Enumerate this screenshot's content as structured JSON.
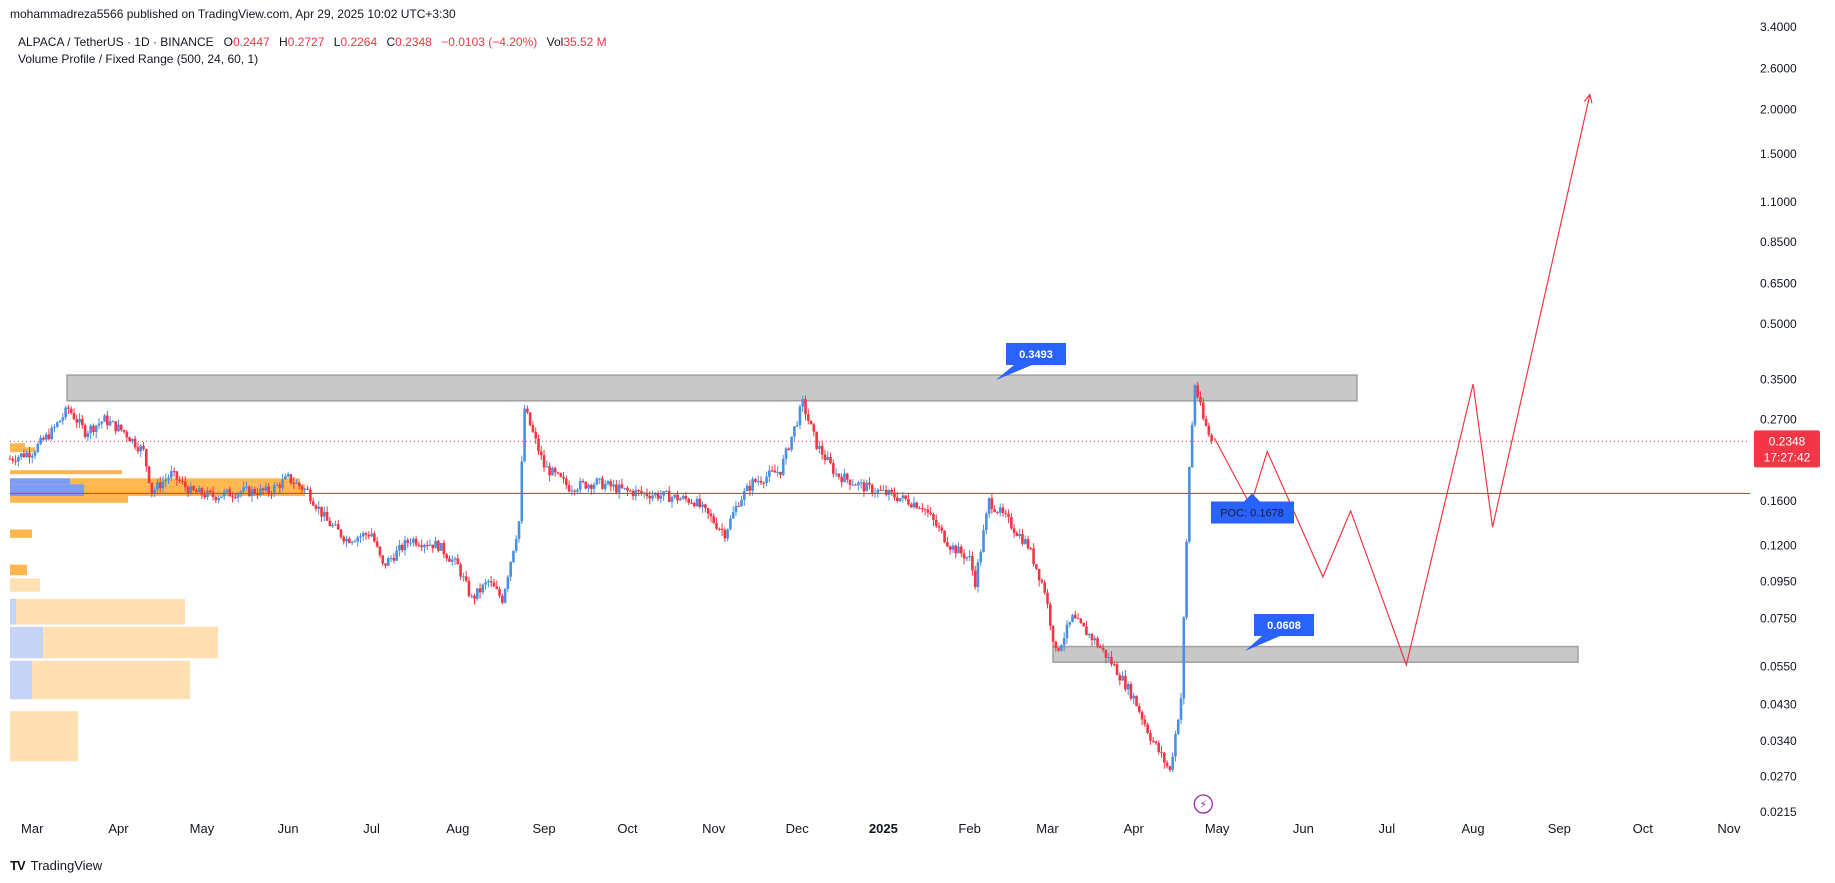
{
  "header": {
    "published_line": "mohammadreza5566 published on TradingView.com, Apr 29, 2025 10:02 UTC+3:30"
  },
  "symbol": {
    "title": "ALPACA / TetherUS · 1D · BINANCE",
    "open_label": "O",
    "open": "0.2447",
    "high_label": "H",
    "high": "0.2727",
    "low_label": "L",
    "low": "0.2264",
    "close_label": "C",
    "close": "0.2348",
    "change": "−0.0103 (−4.20%)",
    "vol_label": "Vol",
    "vol": "35.52 M"
  },
  "indicator": {
    "label": "Volume Profile / Fixed Range (500, 24, 60, 1)"
  },
  "footer": {
    "brand": "TradingView"
  },
  "colors": {
    "up": "#2962ff",
    "up_wick": "#4a90e2",
    "down": "#f23645",
    "zone_fill": "#c8c8c8",
    "zone_stroke": "#a0a0a0",
    "label_bg": "#2962ff",
    "vp_orange": "#ffb74d",
    "vp_blue": "#7b9cf5",
    "vp_orange_light": "#ffe0b2",
    "vp_blue_light": "#c5d3f7",
    "price_badge": "#f23645",
    "flash_icon": "#9c27b0"
  },
  "chart_data": {
    "type": "candlestick",
    "scale": "log",
    "ylim": [
      0.0215,
      3.4
    ],
    "y_ticks": [
      "3.4000",
      "2.6000",
      "2.0000",
      "1.5000",
      "1.1000",
      "0.8500",
      "0.6500",
      "0.5000",
      "0.3500",
      "0.2700",
      "0.1600",
      "0.1200",
      "0.0950",
      "0.0750",
      "0.0550",
      "0.0430",
      "0.0340",
      "0.0270",
      "0.0215"
    ],
    "x_ticks": [
      "Mar",
      "Apr",
      "May",
      "Jun",
      "Jul",
      "Aug",
      "Sep",
      "Oct",
      "Nov",
      "Dec",
      "2025",
      "Feb",
      "Mar",
      "Apr",
      "May",
      "Jun",
      "Jul",
      "Aug",
      "Sep",
      "Oct",
      "Nov"
    ],
    "x_ticks_bold": "2025",
    "price_path": [
      [
        "2024-02-22",
        0.21
      ],
      [
        "2024-03-01",
        0.22
      ],
      [
        "2024-03-08",
        0.25
      ],
      [
        "2024-03-14",
        0.29
      ],
      [
        "2024-03-20",
        0.25
      ],
      [
        "2024-03-27",
        0.27
      ],
      [
        "2024-04-03",
        0.25
      ],
      [
        "2024-04-10",
        0.22
      ],
      [
        "2024-04-13",
        0.17
      ],
      [
        "2024-04-20",
        0.19
      ],
      [
        "2024-04-27",
        0.17
      ],
      [
        "2024-05-05",
        0.165
      ],
      [
        "2024-05-15",
        0.17
      ],
      [
        "2024-05-25",
        0.17
      ],
      [
        "2024-06-01",
        0.185
      ],
      [
        "2024-06-08",
        0.17
      ],
      [
        "2024-06-15",
        0.14
      ],
      [
        "2024-06-22",
        0.125
      ],
      [
        "2024-07-01",
        0.13
      ],
      [
        "2024-07-05",
        0.105
      ],
      [
        "2024-07-15",
        0.125
      ],
      [
        "2024-07-25",
        0.12
      ],
      [
        "2024-08-01",
        0.105
      ],
      [
        "2024-08-06",
        0.085
      ],
      [
        "2024-08-12",
        0.095
      ],
      [
        "2024-08-17",
        0.085
      ],
      [
        "2024-08-23",
        0.14
      ],
      [
        "2024-08-25",
        0.29
      ],
      [
        "2024-09-01",
        0.2
      ],
      [
        "2024-09-10",
        0.175
      ],
      [
        "2024-09-20",
        0.18
      ],
      [
        "2024-10-01",
        0.17
      ],
      [
        "2024-10-15",
        0.165
      ],
      [
        "2024-10-25",
        0.16
      ],
      [
        "2024-11-05",
        0.13
      ],
      [
        "2024-11-10",
        0.16
      ],
      [
        "2024-11-15",
        0.18
      ],
      [
        "2024-11-25",
        0.195
      ],
      [
        "2024-12-03",
        0.3
      ],
      [
        "2024-12-08",
        0.23
      ],
      [
        "2024-12-15",
        0.19
      ],
      [
        "2024-12-25",
        0.175
      ],
      [
        "2025-01-05",
        0.165
      ],
      [
        "2025-01-15",
        0.155
      ],
      [
        "2025-01-25",
        0.12
      ],
      [
        "2025-02-01",
        0.11
      ],
      [
        "2025-02-03",
        0.095
      ],
      [
        "2025-02-08",
        0.16
      ],
      [
        "2025-02-15",
        0.14
      ],
      [
        "2025-02-22",
        0.12
      ],
      [
        "2025-02-28",
        0.09
      ],
      [
        "2025-03-04",
        0.06
      ],
      [
        "2025-03-10",
        0.075
      ],
      [
        "2025-03-18",
        0.065
      ],
      [
        "2025-03-25",
        0.055
      ],
      [
        "2025-04-01",
        0.045
      ],
      [
        "2025-04-07",
        0.035
      ],
      [
        "2025-04-14",
        0.028
      ],
      [
        "2025-04-18",
        0.045
      ],
      [
        "2025-04-21",
        0.2
      ],
      [
        "2025-04-23",
        0.34
      ],
      [
        "2025-04-26",
        0.27
      ],
      [
        "2025-04-29",
        0.2348
      ]
    ],
    "resistance_zone": [
      0.305,
      0.36
    ],
    "support_zone": [
      0.0565,
      0.0625
    ],
    "resistance_label": "0.3493",
    "support_label": "0.0608",
    "poc_value": 0.1678,
    "poc_label": "POC: 0.1678",
    "last_price": "0.2348",
    "countdown": "17:27:42",
    "projection": [
      [
        "2025-04-30",
        0.24
      ],
      [
        "2025-05-13",
        0.155
      ],
      [
        "2025-05-19",
        0.22
      ],
      [
        "2025-06-08",
        0.098
      ],
      [
        "2025-06-18",
        0.15
      ],
      [
        "2025-07-08",
        0.0555
      ],
      [
        "2025-08-01",
        0.34
      ],
      [
        "2025-08-08",
        0.135
      ],
      [
        "2025-09-12",
        2.2
      ]
    ]
  }
}
